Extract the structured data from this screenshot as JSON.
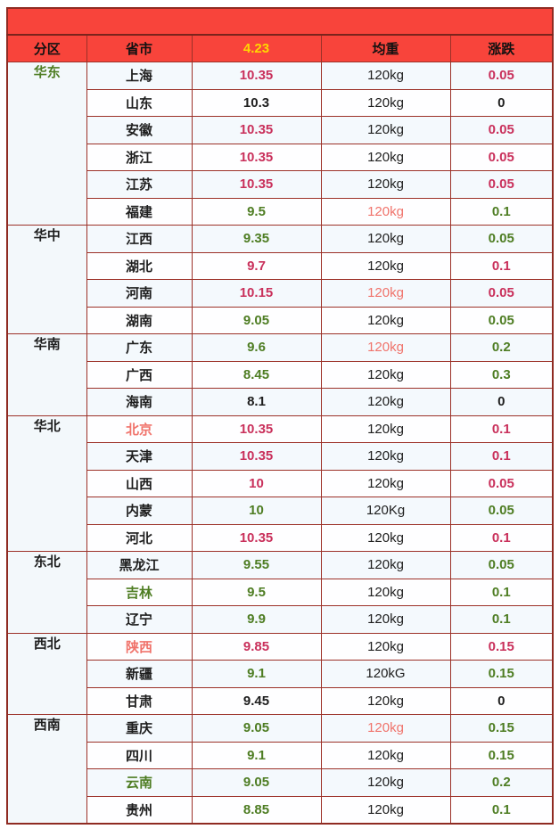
{
  "banner": {
    "text": ""
  },
  "header": {
    "region": "分区",
    "province": "省市",
    "date": "4.23",
    "weight": "均重",
    "change": "涨跌"
  },
  "colors": {
    "accent_red": "#f8443b",
    "border_maroon": "#9c3128",
    "date_yellow": "#ffd700",
    "up_crimson": "#c9305b",
    "down_green": "#4e7d23",
    "salmon": "#f0736b",
    "text_black": "#1e1e1e"
  },
  "groups": [
    {
      "region": "华东",
      "region_color": "down_green",
      "rows": [
        {
          "province": "上海",
          "province_color": "text_black",
          "price": "10.35",
          "price_color": "up_crimson",
          "weight": "120kg",
          "weight_color": "text_black",
          "change": "0.05",
          "change_color": "up_crimson"
        },
        {
          "province": "山东",
          "province_color": "text_black",
          "price": "10.3",
          "price_color": "text_black",
          "weight": "120kg",
          "weight_color": "text_black",
          "change": "0",
          "change_color": "text_black"
        },
        {
          "province": "安徽",
          "province_color": "text_black",
          "price": "10.35",
          "price_color": "up_crimson",
          "weight": "120kg",
          "weight_color": "text_black",
          "change": "0.05",
          "change_color": "up_crimson"
        },
        {
          "province": "浙江",
          "province_color": "text_black",
          "price": "10.35",
          "price_color": "up_crimson",
          "weight": "120kg",
          "weight_color": "text_black",
          "change": "0.05",
          "change_color": "up_crimson"
        },
        {
          "province": "江苏",
          "province_color": "text_black",
          "price": "10.35",
          "price_color": "up_crimson",
          "weight": "120kg",
          "weight_color": "text_black",
          "change": "0.05",
          "change_color": "up_crimson"
        },
        {
          "province": "福建",
          "province_color": "text_black",
          "price": "9.5",
          "price_color": "down_green",
          "weight": "120kg",
          "weight_color": "salmon",
          "change": "0.1",
          "change_color": "down_green"
        }
      ]
    },
    {
      "region": "华中",
      "region_color": "text_black",
      "rows": [
        {
          "province": "江西",
          "province_color": "text_black",
          "price": "9.35",
          "price_color": "down_green",
          "weight": "120kg",
          "weight_color": "text_black",
          "change": "0.05",
          "change_color": "down_green"
        },
        {
          "province": "湖北",
          "province_color": "text_black",
          "price": "9.7",
          "price_color": "up_crimson",
          "weight": "120kg",
          "weight_color": "text_black",
          "change": "0.1",
          "change_color": "up_crimson"
        },
        {
          "province": "河南",
          "province_color": "text_black",
          "price": "10.15",
          "price_color": "up_crimson",
          "weight": "120kg",
          "weight_color": "salmon",
          "change": "0.05",
          "change_color": "up_crimson"
        },
        {
          "province": "湖南",
          "province_color": "text_black",
          "price": "9.05",
          "price_color": "down_green",
          "weight": "120kg",
          "weight_color": "text_black",
          "change": "0.05",
          "change_color": "down_green"
        }
      ]
    },
    {
      "region": "华南",
      "region_color": "text_black",
      "rows": [
        {
          "province": "广东",
          "province_color": "text_black",
          "price": "9.6",
          "price_color": "down_green",
          "weight": "120kg",
          "weight_color": "salmon",
          "change": "0.2",
          "change_color": "down_green"
        },
        {
          "province": "广西",
          "province_color": "text_black",
          "price": "8.45",
          "price_color": "down_green",
          "weight": "120kg",
          "weight_color": "text_black",
          "change": "0.3",
          "change_color": "down_green"
        },
        {
          "province": "海南",
          "province_color": "text_black",
          "price": "8.1",
          "price_color": "text_black",
          "weight": "120kg",
          "weight_color": "text_black",
          "change": "0",
          "change_color": "text_black"
        }
      ]
    },
    {
      "region": "华北",
      "region_color": "text_black",
      "rows": [
        {
          "province": "北京",
          "province_color": "salmon",
          "price": "10.35",
          "price_color": "up_crimson",
          "weight": "120kg",
          "weight_color": "text_black",
          "change": "0.1",
          "change_color": "up_crimson"
        },
        {
          "province": "天津",
          "province_color": "text_black",
          "price": "10.35",
          "price_color": "up_crimson",
          "weight": "120kg",
          "weight_color": "text_black",
          "change": "0.1",
          "change_color": "up_crimson"
        },
        {
          "province": "山西",
          "province_color": "text_black",
          "price": "10",
          "price_color": "up_crimson",
          "weight": "120kg",
          "weight_color": "text_black",
          "change": "0.05",
          "change_color": "up_crimson"
        },
        {
          "province": "内蒙",
          "province_color": "text_black",
          "price": "10",
          "price_color": "down_green",
          "weight": "120Kg",
          "weight_color": "text_black",
          "change": "0.05",
          "change_color": "down_green"
        },
        {
          "province": "河北",
          "province_color": "text_black",
          "price": "10.35",
          "price_color": "up_crimson",
          "weight": "120kg",
          "weight_color": "text_black",
          "change": "0.1",
          "change_color": "up_crimson"
        }
      ]
    },
    {
      "region": "东北",
      "region_color": "text_black",
      "rows": [
        {
          "province": "黑龙江",
          "province_color": "text_black",
          "price": "9.55",
          "price_color": "down_green",
          "weight": "120kg",
          "weight_color": "text_black",
          "change": "0.05",
          "change_color": "down_green"
        },
        {
          "province": "吉林",
          "province_color": "down_green",
          "price": "9.5",
          "price_color": "down_green",
          "weight": "120kg",
          "weight_color": "text_black",
          "change": "0.1",
          "change_color": "down_green"
        },
        {
          "province": "辽宁",
          "province_color": "text_black",
          "price": "9.9",
          "price_color": "down_green",
          "weight": "120kg",
          "weight_color": "text_black",
          "change": "0.1",
          "change_color": "down_green"
        }
      ]
    },
    {
      "region": "西北",
      "region_color": "text_black",
      "rows": [
        {
          "province": "陕西",
          "province_color": "salmon",
          "price": "9.85",
          "price_color": "up_crimson",
          "weight": "120kg",
          "weight_color": "text_black",
          "change": "0.15",
          "change_color": "up_crimson"
        },
        {
          "province": "新疆",
          "province_color": "text_black",
          "price": "9.1",
          "price_color": "down_green",
          "weight": "120kG",
          "weight_color": "text_black",
          "change": "0.15",
          "change_color": "down_green"
        },
        {
          "province": "甘肃",
          "province_color": "text_black",
          "price": "9.45",
          "price_color": "text_black",
          "weight": "120kg",
          "weight_color": "text_black",
          "change": "0",
          "change_color": "text_black"
        }
      ]
    },
    {
      "region": "西南",
      "region_color": "text_black",
      "rows": [
        {
          "province": "重庆",
          "province_color": "text_black",
          "price": "9.05",
          "price_color": "down_green",
          "weight": "120kg",
          "weight_color": "salmon",
          "change": "0.15",
          "change_color": "down_green"
        },
        {
          "province": "四川",
          "province_color": "text_black",
          "price": "9.1",
          "price_color": "down_green",
          "weight": "120kg",
          "weight_color": "text_black",
          "change": "0.15",
          "change_color": "down_green"
        },
        {
          "province": "云南",
          "province_color": "down_green",
          "price": "9.05",
          "price_color": "down_green",
          "weight": "120kg",
          "weight_color": "text_black",
          "change": "0.2",
          "change_color": "down_green"
        },
        {
          "province": "贵州",
          "province_color": "text_black",
          "price": "8.85",
          "price_color": "down_green",
          "weight": "120kg",
          "weight_color": "text_black",
          "change": "0.1",
          "change_color": "down_green"
        }
      ]
    }
  ]
}
